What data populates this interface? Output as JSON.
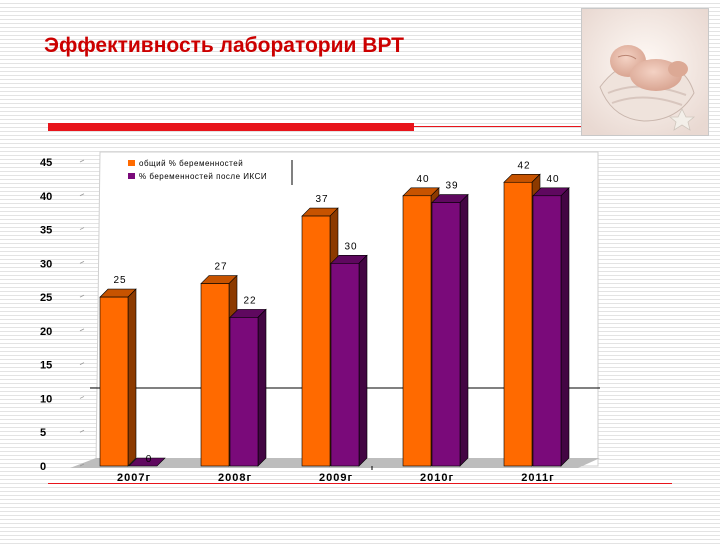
{
  "slide": {
    "title": "Эффективность лаборатории ВРТ"
  },
  "colors": {
    "accent_red": "#e8141b",
    "title_red": "#cc0000",
    "series1": "#ff6a00",
    "series2": "#7a0a7a"
  },
  "icons": {
    "photo": "sleeping-baby-in-shell-photo"
  },
  "chart_data": {
    "type": "bar",
    "categories": [
      "2007г",
      "2008г",
      "2009г",
      "2010г",
      "2011г"
    ],
    "series": [
      {
        "name": "общий % беременностей",
        "values": [
          25,
          27,
          37,
          40,
          42
        ]
      },
      {
        "name": "% беременностей после ИКСИ",
        "values": [
          0,
          22,
          30,
          39,
          40
        ]
      }
    ],
    "ylim": [
      0,
      45
    ],
    "yticks": [
      0,
      5,
      10,
      15,
      20,
      25,
      30,
      35,
      40,
      45
    ],
    "legend": "top-left",
    "grid": false
  }
}
